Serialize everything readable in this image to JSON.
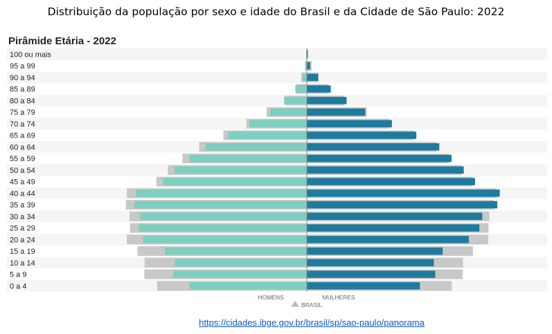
{
  "page": {
    "title": "Distribuição da população por sexo e idade do Brasil e da Cidade de São Paulo: 2022",
    "source_link": "https://cidades.ibge.gov.br/brasil/sp/sao-paulo/panorama"
  },
  "chart_data": {
    "type": "bar",
    "orientation": "horizontal-butterfly",
    "title": "Pirâmide Etária - 2022",
    "categories": [
      "100 ou mais",
      "95 a 99",
      "90 a 94",
      "85 a 89",
      "80 a 84",
      "75 a 79",
      "70 a 74",
      "65 a 69",
      "60 a 64",
      "55 a 59",
      "50 a 54",
      "45 a 49",
      "40 a 44",
      "35 a 39",
      "30 a 34",
      "25 a 29",
      "20 a 24",
      "15 a 19",
      "10 a 14",
      "5 a 9",
      "0 a 4"
    ],
    "axis_labels": {
      "left": "HOMENS",
      "right": "MULHERES"
    },
    "legend": [
      {
        "label": "BRASIL",
        "color": "#bdbdbd",
        "marker": "triangle"
      }
    ],
    "scale_max": 1.0,
    "series": [
      {
        "name": "BRASIL",
        "side": "homens",
        "color": "#c8c8c8",
        "values": [
          0.003,
          0.008,
          0.023,
          0.046,
          0.091,
          0.168,
          0.252,
          0.348,
          0.449,
          0.519,
          0.58,
          0.628,
          0.751,
          0.755,
          0.74,
          0.738,
          0.751,
          0.707,
          0.677,
          0.678,
          0.625
        ]
      },
      {
        "name": "BRASIL",
        "side": "mulheres",
        "color": "#c8c8c8",
        "values": [
          0.005,
          0.02,
          0.048,
          0.087,
          0.155,
          0.25,
          0.345,
          0.446,
          0.54,
          0.593,
          0.646,
          0.692,
          0.792,
          0.782,
          0.762,
          0.758,
          0.757,
          0.693,
          0.652,
          0.651,
          0.605
        ]
      },
      {
        "name": "",
        "side": "homens",
        "color": "#7dcfbf",
        "values": [
          0.002,
          0.004,
          0.018,
          0.048,
          0.095,
          0.153,
          0.24,
          0.328,
          0.423,
          0.49,
          0.552,
          0.6,
          0.714,
          0.719,
          0.695,
          0.701,
          0.683,
          0.592,
          0.55,
          0.558,
          0.49
        ]
      },
      {
        "name": "",
        "side": "mulheres",
        "color": "#1f7b9e",
        "values": [
          0.004,
          0.014,
          0.048,
          0.1,
          0.166,
          0.244,
          0.355,
          0.457,
          0.553,
          0.604,
          0.655,
          0.702,
          0.805,
          0.795,
          0.732,
          0.72,
          0.676,
          0.567,
          0.53,
          0.536,
          0.472
        ]
      }
    ]
  }
}
